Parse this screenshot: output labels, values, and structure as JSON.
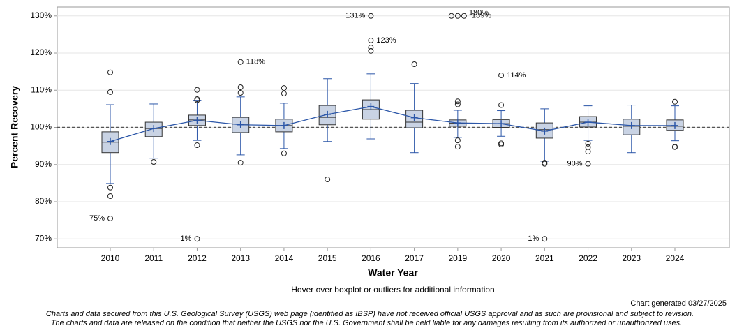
{
  "chart_data": {
    "type": "box",
    "y_axis_label": "Percent Recovery",
    "x_axis_label": "Water Year",
    "note": "Hover over boxplot or outliers for additional information",
    "generated": "Chart generated 03/27/2025",
    "disclaimer": [
      "Charts and data secured from this U.S. Geological Survey (USGS) web page (identified as IBSP) have not received official USGS approval and as such are provisional and subject to revision.",
      "The charts and data are released on the condition that neither the USGS nor the U.S. Government shall be held liable for any damages resulting from its authorized or unauthorized uses."
    ],
    "categories": [
      "2010",
      "2011",
      "2012",
      "2013",
      "2014",
      "2015",
      "2016",
      "2017",
      "2019",
      "2020",
      "2021",
      "2022",
      "2023",
      "2024"
    ],
    "boxes": [
      {
        "min": 84.9,
        "q1": 93.2,
        "median": 96.0,
        "q3": 98.8,
        "max": 106.1,
        "mean": 96.2,
        "outliers": [
          114.8,
          109.5,
          83.8,
          81.5,
          75.5
        ],
        "low_labels": [
          "75%"
        ]
      },
      {
        "min": 91.7,
        "q1": 97.5,
        "median": 99.7,
        "q3": 101.4,
        "max": 106.3,
        "mean": 99.7,
        "outliers": [
          90.7
        ]
      },
      {
        "min": 96.5,
        "q1": 100.5,
        "median": 102.0,
        "q3": 103.3,
        "max": 107.3,
        "mean": 101.9,
        "outliers": [
          110.1,
          107.6,
          107.3,
          95.2,
          70.0
        ],
        "low_labels": [
          "1%"
        ]
      },
      {
        "min": 92.6,
        "q1": 98.6,
        "median": 100.9,
        "q3": 102.7,
        "max": 108.2,
        "mean": 100.7,
        "outliers": [
          117.6,
          110.8,
          109.3,
          90.5
        ],
        "high_labels": [
          "118%"
        ]
      },
      {
        "min": 94.3,
        "q1": 98.8,
        "median": 100.5,
        "q3": 102.2,
        "max": 106.5,
        "mean": 100.5,
        "outliers": [
          110.6,
          109.1,
          93.0
        ]
      },
      {
        "min": 96.2,
        "q1": 100.7,
        "median": 102.7,
        "q3": 105.9,
        "max": 113.1,
        "mean": 103.5,
        "outliers": [
          86.0
        ]
      },
      {
        "min": 96.9,
        "q1": 102.2,
        "median": 104.8,
        "q3": 107.4,
        "max": 114.4,
        "mean": 105.6,
        "outliers": [
          130.0,
          123.4,
          121.5,
          120.6
        ],
        "high_labels": [
          "131%",
          "123%"
        ]
      },
      {
        "min": 93.2,
        "q1": 99.9,
        "median": 101.4,
        "q3": 104.6,
        "max": 111.8,
        "mean": 102.6,
        "outliers": [
          117.0
        ]
      },
      {
        "min": 97.3,
        "q1": 100.3,
        "median": 101.1,
        "q3": 102.0,
        "max": 104.6,
        "mean": 101.2,
        "outliers": [
          130.0,
          130.0,
          130.0,
          107.0,
          106.2,
          96.5,
          94.8
        ],
        "high_labels": [
          "180%",
          "139%"
        ]
      },
      {
        "min": 97.6,
        "q1": 100.0,
        "median": 101.0,
        "q3": 102.1,
        "max": 104.5,
        "mean": 101.0,
        "outliers": [
          114.0,
          106.0,
          95.7,
          95.4
        ],
        "high_labels": [
          "114%"
        ]
      },
      {
        "min": 90.9,
        "q1": 97.1,
        "median": 99.4,
        "q3": 101.2,
        "max": 105.0,
        "mean": 99.0,
        "outliers": [
          90.5,
          90.2,
          70.0
        ],
        "low_labels": [
          "1%"
        ]
      },
      {
        "min": 96.5,
        "q1": 100.1,
        "median": 101.4,
        "q3": 102.9,
        "max": 105.8,
        "mean": 101.4,
        "outliers": [
          95.6,
          94.7,
          93.5,
          90.2
        ],
        "low_labels": [
          "90%"
        ]
      },
      {
        "min": 93.2,
        "q1": 98.0,
        "median": 100.3,
        "q3": 102.2,
        "max": 106.0,
        "mean": 100.5,
        "outliers": []
      },
      {
        "min": 96.4,
        "q1": 99.2,
        "median": 100.3,
        "q3": 102.0,
        "max": 105.8,
        "mean": 100.5,
        "outliers": [
          106.9,
          94.8,
          94.7
        ]
      }
    ],
    "box_color": "#c9d3e4",
    "line_color": "#2b56a8",
    "ref_line": 100,
    "ylim": [
      67.6,
      132.4
    ],
    "yticks": [
      {
        "value": 70,
        "label": "70%"
      },
      {
        "value": 80,
        "label": "80%"
      },
      {
        "value": 90,
        "label": "90%"
      },
      {
        "value": 100,
        "label": "100%"
      },
      {
        "value": 110,
        "label": "110%"
      },
      {
        "value": 120,
        "label": "120%"
      },
      {
        "value": 130,
        "label": "130%"
      }
    ],
    "grid": true
  }
}
